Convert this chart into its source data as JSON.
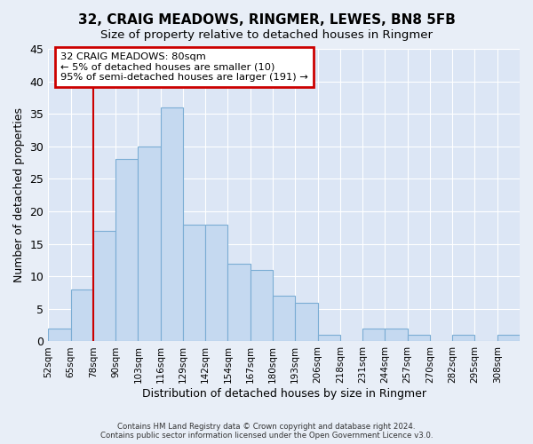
{
  "title": "32, CRAIG MEADOWS, RINGMER, LEWES, BN8 5FB",
  "subtitle": "Size of property relative to detached houses in Ringmer",
  "xlabel": "Distribution of detached houses by size in Ringmer",
  "ylabel": "Number of detached properties",
  "footer_line1": "Contains HM Land Registry data © Crown copyright and database right 2024.",
  "footer_line2": "Contains public sector information licensed under the Open Government Licence v3.0.",
  "bin_labels": [
    "52sqm",
    "65sqm",
    "78sqm",
    "90sqm",
    "103sqm",
    "116sqm",
    "129sqm",
    "142sqm",
    "154sqm",
    "167sqm",
    "180sqm",
    "193sqm",
    "206sqm",
    "218sqm",
    "231sqm",
    "244sqm",
    "257sqm",
    "270sqm",
    "282sqm",
    "295sqm",
    "308sqm"
  ],
  "bar_heights": [
    2,
    8,
    17,
    28,
    30,
    36,
    18,
    18,
    12,
    11,
    7,
    6,
    1,
    0,
    2,
    2,
    1,
    0,
    1,
    0,
    1
  ],
  "bar_color": "#c5d9f0",
  "bar_edge_color": "#7badd4",
  "ylim": [
    0,
    45
  ],
  "yticks": [
    0,
    5,
    10,
    15,
    20,
    25,
    30,
    35,
    40,
    45
  ],
  "vertical_line_x": 2,
  "annotation_title": "32 CRAIG MEADOWS: 80sqm",
  "annotation_line1": "← 5% of detached houses are smaller (10)",
  "annotation_line2": "95% of semi-detached houses are larger (191) →",
  "annotation_box_color": "#cc0000",
  "background_color": "#e8eef7",
  "plot_bg_color": "#dce6f5"
}
